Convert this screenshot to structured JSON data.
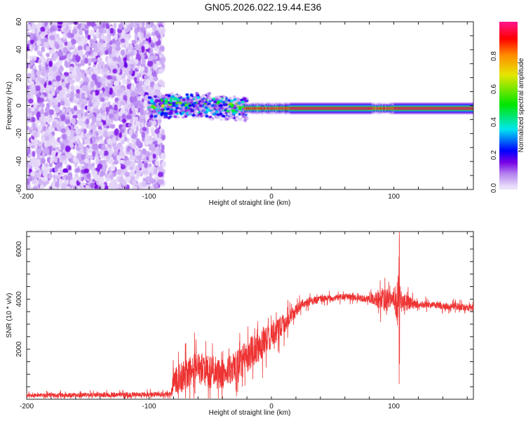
{
  "title": "GN05.2026.022.19.44.E36",
  "chart_data": [
    {
      "type": "heatmap",
      "title": "GN05.2026.022.19.44.E36",
      "xlabel": "Height of straight line (km)",
      "ylabel": "Frequency (Hz)",
      "xlim": [
        -200,
        165
      ],
      "ylim": [
        -60,
        60
      ],
      "xticks": [
        "-200",
        "-100",
        "0",
        "100"
      ],
      "yticks": [
        "-60",
        "-40",
        "-20",
        "0",
        "20",
        "40",
        "60"
      ],
      "colorbar": {
        "label": "Normalized spectral amplitude",
        "range": [
          0,
          1
        ],
        "ticks": [
          "0.0",
          "0.2",
          "0.4",
          "0.6",
          "0.8"
        ]
      },
      "regions": [
        {
          "x_range": [
            -200,
            -88
          ],
          "freq_range": [
            -60,
            60
          ],
          "amplitude": [
            0.0,
            0.12
          ],
          "description": "broadband noise"
        },
        {
          "x_range": [
            -100,
            -20
          ],
          "freq_center": 0,
          "freq_halfwidth": 10,
          "amplitude": [
            0.1,
            0.7
          ]
        },
        {
          "x_range": [
            -20,
            165
          ],
          "freq_center": -2,
          "freq_halfwidth": 3,
          "amplitude": [
            0.1,
            1.0
          ]
        }
      ]
    },
    {
      "type": "line",
      "xlabel": "Height of straight line (km)",
      "ylabel": "SNR (10 * v/v)",
      "xlim": [
        -200,
        165
      ],
      "ylim": [
        0,
        6700
      ],
      "xticks": [
        "-200",
        "-100",
        "0",
        "100"
      ],
      "yticks": [
        "2000",
        "4000",
        "6000"
      ],
      "color": "#ee3333",
      "series": [
        {
          "name": "SNR",
          "x": [
            -200,
            -82,
            -80,
            -60,
            -40,
            -20,
            -10,
            0,
            10,
            25,
            40,
            60,
            80,
            92,
            100,
            104,
            106,
            120,
            165
          ],
          "y": [
            150,
            200,
            700,
            1200,
            1000,
            1700,
            2200,
            2500,
            3000,
            3800,
            4000,
            4100,
            4000,
            4000,
            4000,
            3900,
            3900,
            3800,
            3650
          ],
          "noise": [
            120,
            150,
            800,
            1000,
            900,
            900,
            1000,
            700,
            600,
            250,
            200,
            180,
            200,
            700,
            400,
            1800,
            600,
            200,
            200
          ]
        }
      ]
    }
  ]
}
